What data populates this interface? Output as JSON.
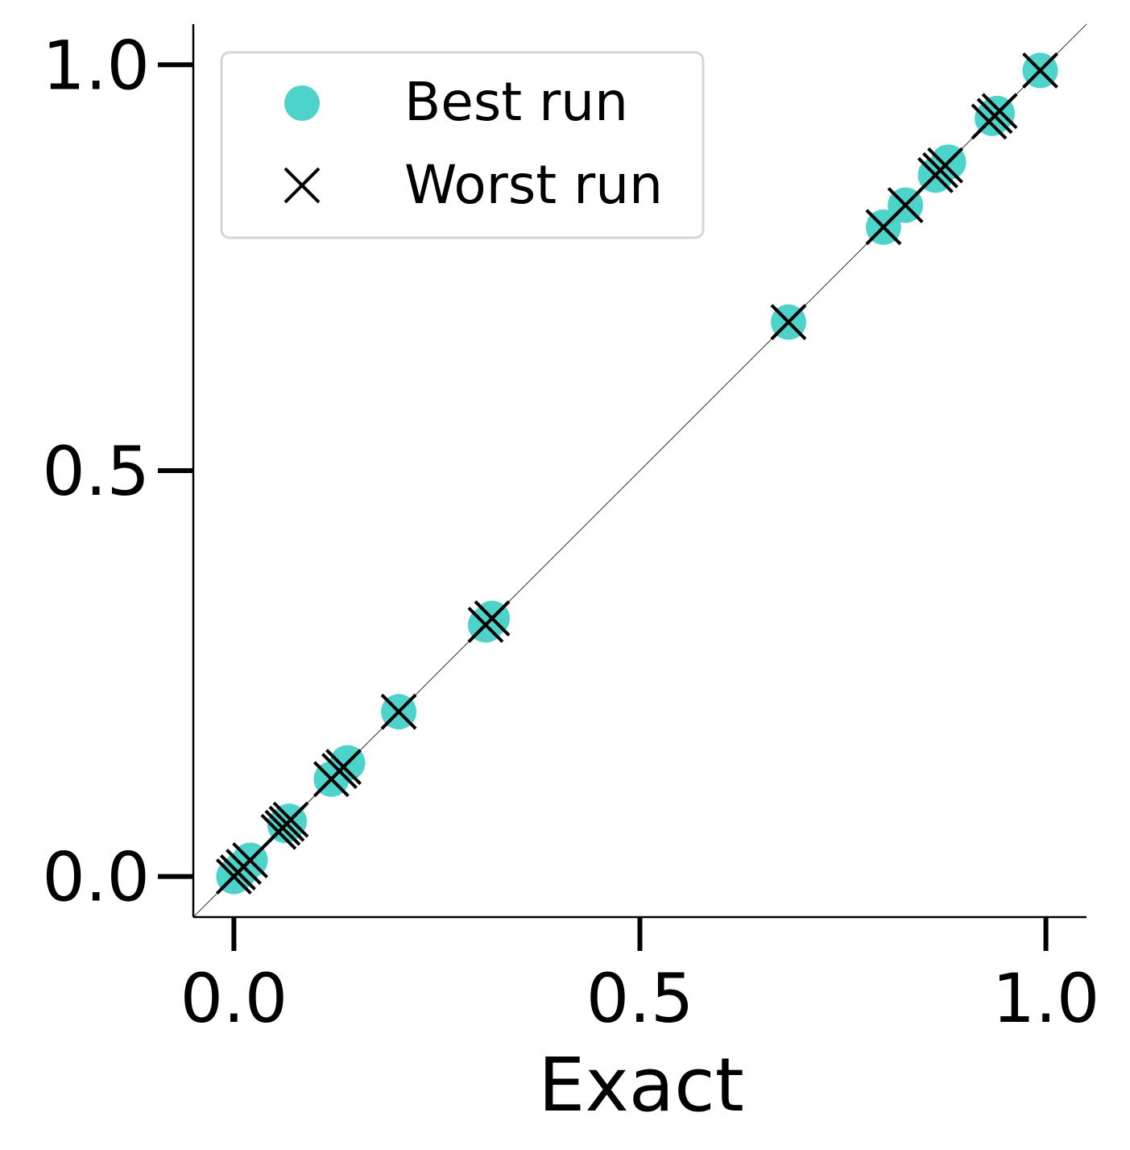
{
  "chart_data": {
    "type": "scatter",
    "xlabel": "Exact",
    "ylabel": "",
    "xlim": [
      -0.05,
      1.05
    ],
    "ylim": [
      -0.05,
      1.05
    ],
    "xticks": [
      0.0,
      0.5,
      1.0
    ],
    "yticks": [
      0.0,
      0.5,
      1.0
    ],
    "tick_labels_x": [
      "0.0",
      "0.5",
      "1.0"
    ],
    "tick_labels_y": [
      "0.0",
      "0.5",
      "1.0"
    ],
    "grid": false,
    "legend_position": "top-left",
    "reference_line": "y = x",
    "series": [
      {
        "name": "Best run",
        "marker": "circle",
        "color": "#4ed3cb",
        "points": [
          {
            "x": 0.0,
            "y": 0.0
          },
          {
            "x": 0.005,
            "y": 0.005
          },
          {
            "x": 0.01,
            "y": 0.01
          },
          {
            "x": 0.02,
            "y": 0.02
          },
          {
            "x": 0.063,
            "y": 0.063
          },
          {
            "x": 0.068,
            "y": 0.068
          },
          {
            "x": 0.12,
            "y": 0.12
          },
          {
            "x": 0.14,
            "y": 0.14
          },
          {
            "x": 0.203,
            "y": 0.203
          },
          {
            "x": 0.31,
            "y": 0.31
          },
          {
            "x": 0.318,
            "y": 0.318
          },
          {
            "x": 0.683,
            "y": 0.683
          },
          {
            "x": 0.8,
            "y": 0.8
          },
          {
            "x": 0.827,
            "y": 0.827
          },
          {
            "x": 0.864,
            "y": 0.864
          },
          {
            "x": 0.88,
            "y": 0.88
          },
          {
            "x": 0.934,
            "y": 0.934
          },
          {
            "x": 0.94,
            "y": 0.94
          },
          {
            "x": 0.993,
            "y": 0.993
          }
        ]
      },
      {
        "name": "Worst run",
        "marker": "x",
        "color": "#000000",
        "points": [
          {
            "x": 0.0,
            "y": 0.0
          },
          {
            "x": 0.005,
            "y": 0.005
          },
          {
            "x": 0.012,
            "y": 0.012
          },
          {
            "x": 0.02,
            "y": 0.02
          },
          {
            "x": 0.055,
            "y": 0.055
          },
          {
            "x": 0.06,
            "y": 0.06
          },
          {
            "x": 0.065,
            "y": 0.065
          },
          {
            "x": 0.07,
            "y": 0.07
          },
          {
            "x": 0.12,
            "y": 0.12
          },
          {
            "x": 0.13,
            "y": 0.13
          },
          {
            "x": 0.135,
            "y": 0.135
          },
          {
            "x": 0.203,
            "y": 0.203
          },
          {
            "x": 0.31,
            "y": 0.31
          },
          {
            "x": 0.318,
            "y": 0.318
          },
          {
            "x": 0.683,
            "y": 0.683
          },
          {
            "x": 0.8,
            "y": 0.8
          },
          {
            "x": 0.827,
            "y": 0.827
          },
          {
            "x": 0.864,
            "y": 0.864
          },
          {
            "x": 0.87,
            "y": 0.87
          },
          {
            "x": 0.876,
            "y": 0.876
          },
          {
            "x": 0.93,
            "y": 0.93
          },
          {
            "x": 0.937,
            "y": 0.937
          },
          {
            "x": 0.943,
            "y": 0.943
          },
          {
            "x": 0.993,
            "y": 0.993
          }
        ]
      }
    ]
  }
}
